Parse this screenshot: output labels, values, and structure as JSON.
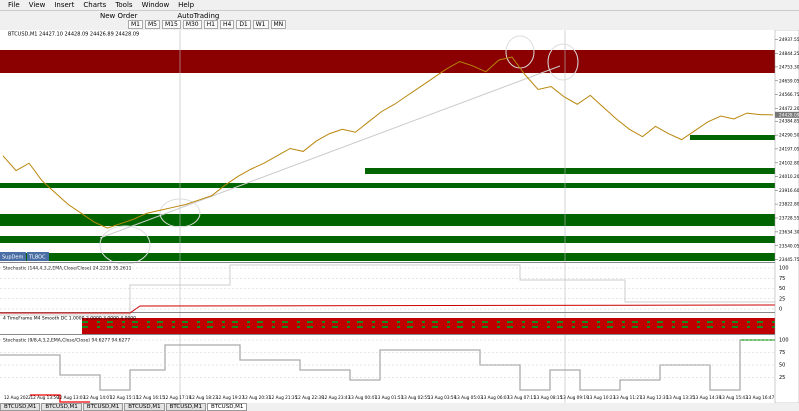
{
  "menu": [
    "File",
    "View",
    "Insert",
    "Charts",
    "Tools",
    "Window",
    "Help"
  ],
  "toolbar": {
    "buttons": [
      "New Order",
      "AutoTrading"
    ],
    "timeframes": [
      "M1",
      "M5",
      "M15",
      "M30",
      "H1",
      "H4",
      "D1",
      "W1",
      "MN"
    ]
  },
  "chart": {
    "header": "BTCUSD,M1  24427.10 24428.09 24426.89 24428.09",
    "ylim": [
      23430,
      24990
    ],
    "price_ticks": [
      {
        "value": 24937.55,
        "label": "24937.55"
      },
      {
        "value": 24844.25,
        "label": "24844.25"
      },
      {
        "value": 24753.3,
        "label": "24753.30"
      },
      {
        "value": 24659.05,
        "label": "24659.05"
      },
      {
        "value": 24566.75,
        "label": "24566.75"
      },
      {
        "value": 24472.2,
        "label": "24472.20"
      },
      {
        "value": 24384.85,
        "label": "24384.85"
      },
      {
        "value": 24290.5,
        "label": "24290.50"
      },
      {
        "value": 24197.05,
        "label": "24197.05"
      },
      {
        "value": 24102.8,
        "label": "24102.80"
      },
      {
        "value": 24010.2,
        "label": "24010.20"
      },
      {
        "value": 23916.6,
        "label": "23916.60"
      },
      {
        "value": 23822.8,
        "label": "23822.80"
      },
      {
        "value": 23728.55,
        "label": "23728.55"
      },
      {
        "value": 23634.3,
        "label": "23634.30"
      },
      {
        "value": 23540.05,
        "label": "23540.05"
      },
      {
        "value": 23445.75,
        "label": "23445.75"
      }
    ],
    "last_price": {
      "value": 24428.09,
      "label": "24428.09"
    },
    "price_values": [
      24150,
      24050,
      24100,
      23980,
      23900,
      23820,
      23760,
      23700,
      23660,
      23690,
      23720,
      23760,
      23780,
      23800,
      23820,
      23850,
      23880,
      23950,
      24010,
      24060,
      24100,
      24150,
      24200,
      24180,
      24250,
      24300,
      24330,
      24310,
      24380,
      24450,
      24500,
      24560,
      24620,
      24680,
      24740,
      24790,
      24760,
      24720,
      24800,
      24820,
      24700,
      24600,
      24620,
      24550,
      24500,
      24560,
      24480,
      24400,
      24330,
      24280,
      24350,
      24300,
      24260,
      24320,
      24380,
      24420,
      24400,
      24440,
      24430,
      24428
    ],
    "buttons": [
      "SupDem",
      "TLBOC"
    ],
    "time_labels": [
      "12 Aug 2022",
      "12 Aug 13:59",
      "12 Aug 13:03",
      "12 Aug 14:07",
      "12 Aug 15:11",
      "12 Aug 16:15",
      "12 Aug 17:19",
      "12 Aug 18:23",
      "12 Aug 19:27",
      "12 Aug 20:31",
      "12 Aug 21:35",
      "12 Aug 22:39",
      "12 Aug 23:43",
      "13 Aug 00:47",
      "13 Aug 01:51",
      "13 Aug 02:55",
      "13 Aug 03:59",
      "13 Aug 05:03",
      "13 Aug 06:07",
      "13 Aug 07:11",
      "13 Aug 08:15",
      "13 Aug 09:19",
      "13 Aug 10:23",
      "13 Aug 11:27",
      "13 Aug 12:31",
      "13 Aug 13:35",
      "13 Aug 14:39",
      "13 Aug 15:43",
      "13 Aug 16:47"
    ]
  },
  "indicators": [
    {
      "label": "Stochastic (144,4,3,2,EMA,Close/Close) 24.2218 35.2611",
      "ticks": [
        100,
        75,
        50,
        25,
        0
      ]
    },
    {
      "label": "4 TimeFrame M4 Smooth DC  1.0000 2.0000 3.0000 4.0000",
      "ticks": []
    },
    {
      "label": "Stochastic (9/8,4,3,2,EMA,Close/Close) 94.6277 94.6277",
      "ticks": [
        100,
        75,
        50,
        25
      ]
    }
  ],
  "tabs": [
    "BTCUSD,M1",
    "BTCUSD,M1",
    "BTCUSD,M1",
    "BTCUSD,M1",
    "BTCUSD,M1",
    "BTCUSD,M1"
  ]
}
